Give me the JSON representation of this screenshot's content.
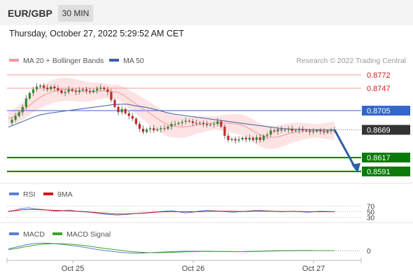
{
  "header": {
    "pair": "EUR/GBP",
    "timeframe": "30 MIN",
    "timestamp": "Thursday, October 27, 2022 5:29:52 AM CET"
  },
  "legend": {
    "bb": "MA 20 + Bollinger Bands",
    "ma50": "MA 50",
    "credit": "Research © 2022 Trading Central"
  },
  "colors": {
    "bb": "#f29a9a",
    "ma50": "#3a5fa5",
    "resistance": "#f29a9a",
    "pivot": "#3366cc",
    "support": "#0a7a0a",
    "current": "#333333",
    "arrow": "#2e5fa3",
    "rsi": "#5b7fd6",
    "rsi_ma": "#d11a1a",
    "macd": "#5b7fd6",
    "signal": "#3aa52a"
  },
  "chart_data": [
    {
      "type": "candlestick",
      "x_ticks": [
        "Oct 25",
        "Oct 26",
        "Oct 27"
      ],
      "levels": [
        {
          "value": 0.8772,
          "label": "0.8772",
          "kind": "resistance"
        },
        {
          "value": 0.8747,
          "label": "0.8747",
          "kind": "resistance"
        },
        {
          "value": 0.8705,
          "label": "0.8705",
          "kind": "pivot"
        },
        {
          "value": 0.8669,
          "label": "0.8669",
          "kind": "current"
        },
        {
          "value": 0.8617,
          "label": "0.8617",
          "kind": "support"
        },
        {
          "value": 0.8591,
          "label": "0.8591",
          "kind": "support"
        }
      ],
      "price_path": [
        0.8682,
        0.8688,
        0.8695,
        0.8702,
        0.8712,
        0.8728,
        0.8738,
        0.8745,
        0.875,
        0.8752,
        0.8748,
        0.8745,
        0.875,
        0.8747,
        0.8743,
        0.8738,
        0.874,
        0.8745,
        0.8742,
        0.874,
        0.8743,
        0.8745,
        0.8742,
        0.874,
        0.8743,
        0.8746,
        0.8748,
        0.8745,
        0.874,
        0.8725,
        0.8712,
        0.8702,
        0.8708,
        0.87,
        0.8695,
        0.869,
        0.868,
        0.8671,
        0.8665,
        0.867,
        0.8672,
        0.8668,
        0.867,
        0.8672,
        0.8671,
        0.8675,
        0.868,
        0.868,
        0.8682,
        0.8684,
        0.8686,
        0.8685,
        0.8682,
        0.8681,
        0.8682,
        0.868,
        0.8678,
        0.8679,
        0.868,
        0.8685,
        0.8675,
        0.8658,
        0.865,
        0.8652,
        0.8649,
        0.8651,
        0.8654,
        0.8651,
        0.8654,
        0.865,
        0.8655,
        0.865,
        0.8658,
        0.866,
        0.8668,
        0.8666,
        0.867,
        0.8668,
        0.8669,
        0.8671,
        0.8667,
        0.8668,
        0.867,
        0.8668,
        0.8667,
        0.8665,
        0.8666,
        0.8668,
        0.8666,
        0.8664,
        0.8667,
        0.8668,
        0.8669
      ],
      "ma20": [
        0.869,
        0.8694,
        0.87,
        0.8708,
        0.8716,
        0.8724,
        0.8731,
        0.8736,
        0.874,
        0.8743,
        0.8745,
        0.8745,
        0.8744,
        0.8742,
        0.8741,
        0.874,
        0.8741,
        0.8742,
        0.8742,
        0.8741,
        0.874,
        0.8735,
        0.8728,
        0.8721,
        0.8714,
        0.8707,
        0.87,
        0.8693,
        0.8686,
        0.868,
        0.8677,
        0.8675,
        0.8674,
        0.8675,
        0.8677,
        0.8679,
        0.868,
        0.8681,
        0.8682,
        0.8682,
        0.8682,
        0.8681,
        0.868,
        0.8678,
        0.8673,
        0.8667,
        0.8661,
        0.8657,
        0.8655,
        0.8655,
        0.8657,
        0.866,
        0.8663,
        0.8665,
        0.8666,
        0.8667,
        0.8667,
        0.8667,
        0.8667,
        0.8667,
        0.8667
      ],
      "ma50": [
        0.8674,
        0.868,
        0.8686,
        0.8692,
        0.8697,
        0.87,
        0.8702,
        0.8704,
        0.8706,
        0.8708,
        0.871,
        0.8712,
        0.8714,
        0.8716,
        0.8717,
        0.8717,
        0.8714,
        0.8712,
        0.8709,
        0.8705,
        0.8701,
        0.8698,
        0.8696,
        0.8694,
        0.8692,
        0.869,
        0.8688,
        0.8686,
        0.8684,
        0.8682,
        0.868,
        0.8678,
        0.8676,
        0.8674,
        0.8672,
        0.8671,
        0.867,
        0.867,
        0.8669,
        0.8669,
        0.8669,
        0.8669
      ],
      "forecast": {
        "from": 0.8669,
        "to": 0.8591,
        "arrow": "down"
      }
    },
    {
      "type": "line",
      "name": "RSI",
      "legend": [
        "RSI",
        "9MA"
      ],
      "y_ticks": [
        "70",
        "50",
        "30"
      ],
      "rsi": [
        50,
        56,
        62,
        64,
        60,
        58,
        55,
        52,
        54,
        56,
        52,
        50,
        48,
        45,
        42,
        40,
        38,
        40,
        42,
        44,
        46,
        48,
        50,
        52,
        54,
        50,
        46,
        48,
        52,
        55,
        54,
        52,
        50,
        48,
        50,
        52,
        54,
        55,
        53,
        52,
        50,
        51,
        52,
        50,
        48,
        50,
        52,
        51,
        50
      ],
      "rsi_ma": [
        52,
        54,
        57,
        58,
        58,
        57,
        56,
        55,
        54,
        53,
        52,
        51,
        49,
        47,
        45,
        43,
        42,
        42,
        43,
        44,
        45,
        47,
        49,
        50,
        50,
        50,
        50,
        50,
        50,
        51,
        52,
        52,
        52,
        52,
        51,
        51,
        52,
        52,
        52,
        52,
        51,
        51,
        51,
        51,
        50,
        50,
        50,
        50,
        50
      ]
    },
    {
      "type": "line",
      "name": "MACD",
      "legend": [
        "MACD",
        "MACD Signal"
      ],
      "y_ticks": [
        "0"
      ],
      "macd": [
        0.0008,
        0.0018,
        0.0028,
        0.0034,
        0.0036,
        0.0034,
        0.003,
        0.0025,
        0.002,
        0.0013,
        0.0006,
        0.0,
        -0.0005,
        -0.0009,
        -0.0012,
        -0.0012,
        -0.001,
        -0.0008,
        -0.0006,
        -0.0004,
        -0.0003,
        -0.0003,
        -0.0003,
        -0.0003,
        -0.0004,
        -0.0005,
        -0.0005,
        -0.0004,
        -0.0003,
        -0.0002,
        -0.0001,
        0.0,
        0.0,
        0.0001,
        0.0001,
        0.0,
        0.0,
        0.0
      ],
      "signal": [
        0.0004,
        0.0011,
        0.0019,
        0.0026,
        0.0031,
        0.0033,
        0.0033,
        0.0031,
        0.0027,
        0.0022,
        0.0016,
        0.001,
        0.0005,
        0.0,
        -0.0005,
        -0.0008,
        -0.001,
        -0.001,
        -0.0009,
        -0.0008,
        -0.0006,
        -0.0005,
        -0.0004,
        -0.0004,
        -0.0004,
        -0.0004,
        -0.0005,
        -0.0005,
        -0.0004,
        -0.0003,
        -0.0002,
        -0.0001,
        -0.0001,
        0.0,
        0.0,
        0.0,
        0.0,
        0.0
      ]
    }
  ]
}
